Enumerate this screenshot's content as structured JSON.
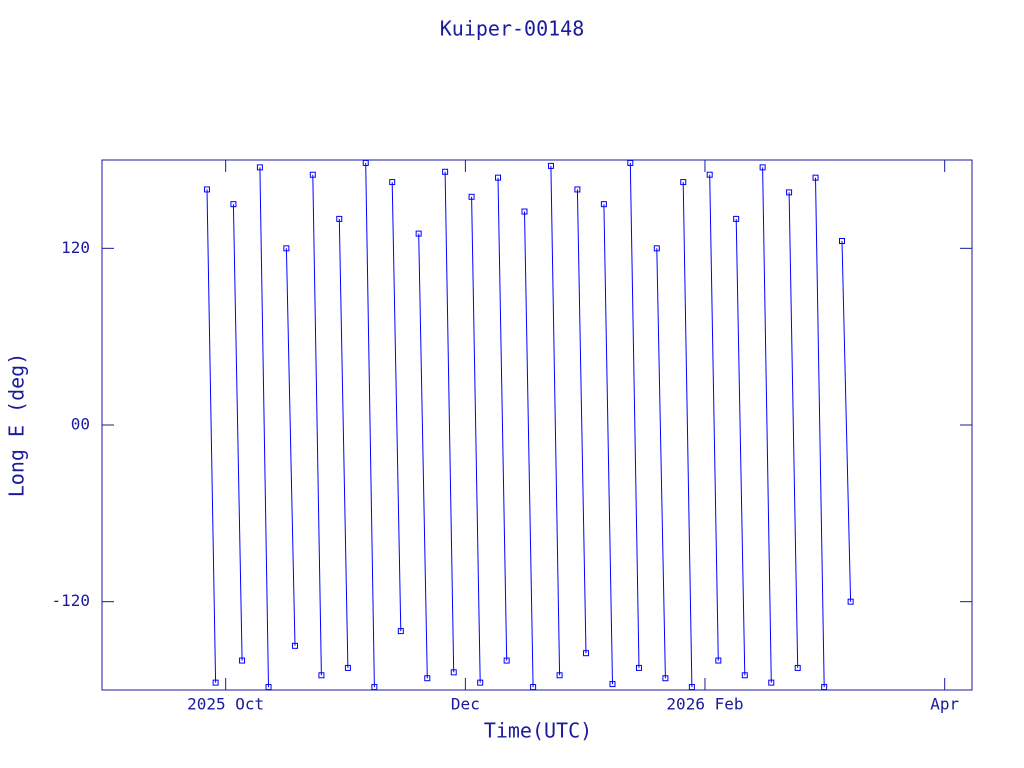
{
  "chart_data": {
    "type": "line",
    "title": "Kuiper-00148",
    "xlabel": "Time(UTC)",
    "ylabel": "Long E (deg)",
    "xlim": [
      2025.664,
      2026.269
    ],
    "ylim": [
      -180,
      180
    ],
    "xticks": [
      {
        "value": 2025.75,
        "label": "2025 Oct"
      },
      {
        "value": 2025.9167,
        "label": "Dec"
      },
      {
        "value": 2026.0833,
        "label": "2026 Feb"
      },
      {
        "value": 2026.25,
        "label": "Apr"
      }
    ],
    "yticks": [
      -120,
      {
        "value": 0,
        "label": "00"
      },
      120
    ],
    "series": [
      {
        "color": "#0000ff",
        "x": [
          2025.737,
          2025.743,
          2025.7435,
          2025.7554,
          2025.7614,
          2025.7619,
          2025.7738,
          2025.7798,
          2025.7803,
          2025.7922,
          2025.7982,
          2025.7987,
          2025.8106,
          2025.8166,
          2025.8171,
          2025.829,
          2025.835,
          2025.8355,
          2025.8474,
          2025.8534,
          2025.8539,
          2025.8658,
          2025.8718,
          2025.8723,
          2025.8842,
          2025.8902,
          2025.8907,
          2025.9026,
          2025.9086,
          2025.9091,
          2025.921,
          2025.927,
          2025.9275,
          2025.9394,
          2025.9454,
          2025.9459,
          2025.9578,
          2025.9638,
          2025.9643,
          2025.9762,
          2025.9822,
          2025.9827,
          2025.9946,
          2026.0006,
          2026.0011,
          2026.013,
          2026.019,
          2026.0195,
          2026.0314,
          2026.0374,
          2026.0379,
          2026.0498,
          2026.0558,
          2026.0563,
          2026.0682,
          2026.0742,
          2026.0747,
          2026.0866,
          2026.0926,
          2026.0931,
          2026.105,
          2026.111,
          2026.1115,
          2026.1234,
          2026.1294,
          2026.1299,
          2026.1418,
          2026.1478,
          2026.1483,
          2026.1602,
          2026.1662,
          2026.1667,
          2026.1786,
          2026.1846
        ],
        "values": [
          160,
          -175,
          null,
          150,
          -160,
          null,
          175,
          -178,
          null,
          120,
          -150,
          null,
          170,
          -170,
          null,
          140,
          -165,
          null,
          178,
          -178,
          null,
          165,
          -140,
          null,
          130,
          -172,
          null,
          172,
          -168,
          null,
          155,
          -175,
          null,
          168,
          -160,
          null,
          145,
          -178,
          null,
          176,
          -170,
          null,
          160,
          -155,
          null,
          150,
          -176,
          null,
          178,
          -165,
          null,
          120,
          -172,
          null,
          165,
          -178,
          null,
          170,
          -160,
          null,
          140,
          -170,
          null,
          175,
          -175,
          null,
          158,
          -165,
          null,
          168,
          -178,
          null,
          125,
          -120
        ]
      }
    ]
  }
}
